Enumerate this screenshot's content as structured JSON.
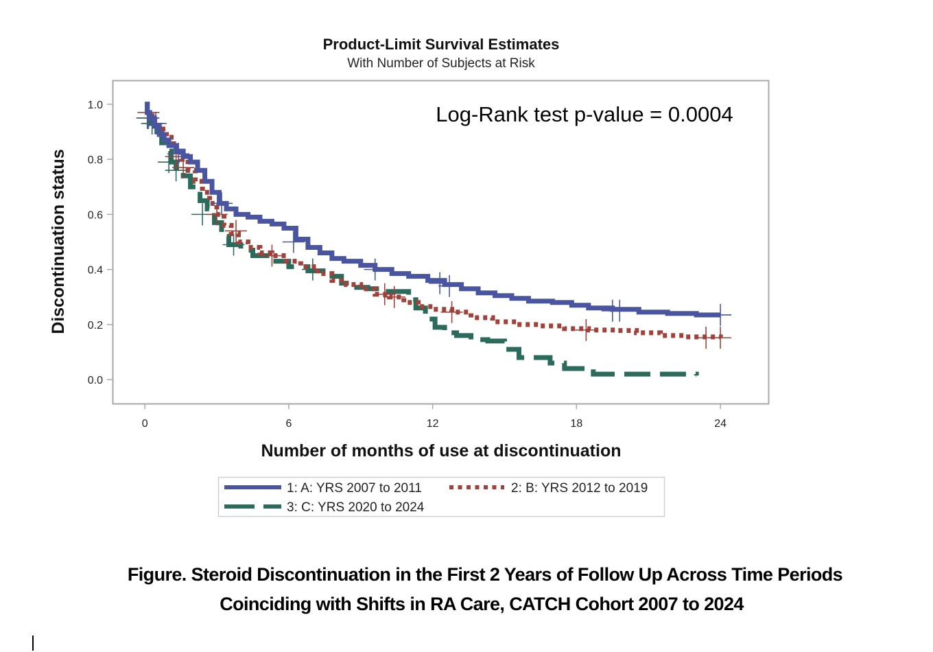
{
  "chart_data": {
    "type": "line",
    "subtype": "kaplan-meier-step",
    "title": "Product-Limit Survival Estimates",
    "subtitle": "With Number of Subjects at Risk",
    "xlabel": "Number of months of use at discontinuation",
    "ylabel": "Discontinuation status",
    "x_ticks": [
      0,
      6,
      12,
      18,
      24
    ],
    "y_ticks": [
      "0.0",
      "0.2",
      "0.4",
      "0.6",
      "0.8",
      "1.0"
    ],
    "xlim": [
      -1.35,
      26
    ],
    "ylim": [
      -0.087,
      1.087
    ],
    "grid": false,
    "legend_position": "bottom",
    "annotation": "Log-Rank test p-value = 0.0004",
    "series": [
      {
        "name": "1: A: YRS 2007 to 2011",
        "color": "#4a55a2",
        "style": "solid",
        "points": [
          [
            0,
            1.0
          ],
          [
            0.1,
            0.97
          ],
          [
            0.2,
            0.95
          ],
          [
            0.4,
            0.92
          ],
          [
            0.6,
            0.89
          ],
          [
            0.8,
            0.87
          ],
          [
            1.0,
            0.85
          ],
          [
            1.3,
            0.83
          ],
          [
            1.6,
            0.81
          ],
          [
            1.9,
            0.79
          ],
          [
            2.2,
            0.76
          ],
          [
            2.5,
            0.72
          ],
          [
            2.8,
            0.68
          ],
          [
            3.1,
            0.64
          ],
          [
            3.4,
            0.62
          ],
          [
            3.8,
            0.6
          ],
          [
            4.3,
            0.59
          ],
          [
            4.8,
            0.575
          ],
          [
            5.3,
            0.565
          ],
          [
            5.8,
            0.55
          ],
          [
            6.3,
            0.51
          ],
          [
            6.8,
            0.48
          ],
          [
            7.3,
            0.46
          ],
          [
            7.8,
            0.44
          ],
          [
            8.3,
            0.43
          ],
          [
            9.0,
            0.415
          ],
          [
            9.6,
            0.4
          ],
          [
            10.3,
            0.385
          ],
          [
            11.0,
            0.375
          ],
          [
            11.8,
            0.36
          ],
          [
            12.5,
            0.345
          ],
          [
            13.2,
            0.33
          ],
          [
            13.9,
            0.315
          ],
          [
            14.6,
            0.305
          ],
          [
            15.3,
            0.295
          ],
          [
            16.0,
            0.285
          ],
          [
            17.0,
            0.28
          ],
          [
            17.8,
            0.27
          ],
          [
            18.5,
            0.26
          ],
          [
            19.5,
            0.255
          ],
          [
            20.6,
            0.245
          ],
          [
            21.8,
            0.24
          ],
          [
            23.0,
            0.235
          ],
          [
            24.0,
            0.235
          ]
        ],
        "censored": [
          [
            0.15,
            0.95
          ],
          [
            0.45,
            0.93
          ],
          [
            1.4,
            0.82
          ],
          [
            3.2,
            0.64
          ],
          [
            6.2,
            0.5
          ],
          [
            9.6,
            0.4
          ],
          [
            12.3,
            0.35
          ],
          [
            12.7,
            0.34
          ],
          [
            19.5,
            0.25
          ],
          [
            19.8,
            0.25
          ],
          [
            24.0,
            0.235
          ]
        ]
      },
      {
        "name": "2: B: YRS 2012 to 2019",
        "color": "#a0413a",
        "style": "dotted",
        "points": [
          [
            0,
            1.0
          ],
          [
            0.1,
            0.97
          ],
          [
            0.3,
            0.94
          ],
          [
            0.6,
            0.91
          ],
          [
            0.9,
            0.88
          ],
          [
            1.2,
            0.84
          ],
          [
            1.5,
            0.8
          ],
          [
            1.8,
            0.76
          ],
          [
            2.1,
            0.72
          ],
          [
            2.4,
            0.68
          ],
          [
            2.7,
            0.64
          ],
          [
            3.0,
            0.6
          ],
          [
            3.3,
            0.56
          ],
          [
            3.6,
            0.53
          ],
          [
            3.9,
            0.5
          ],
          [
            4.3,
            0.48
          ],
          [
            4.8,
            0.46
          ],
          [
            5.3,
            0.45
          ],
          [
            5.9,
            0.43
          ],
          [
            6.5,
            0.41
          ],
          [
            7.2,
            0.385
          ],
          [
            7.8,
            0.36
          ],
          [
            8.4,
            0.345
          ],
          [
            9.0,
            0.33
          ],
          [
            9.6,
            0.31
          ],
          [
            10.2,
            0.3
          ],
          [
            10.8,
            0.28
          ],
          [
            11.4,
            0.265
          ],
          [
            12.0,
            0.255
          ],
          [
            12.8,
            0.245
          ],
          [
            13.6,
            0.225
          ],
          [
            14.5,
            0.21
          ],
          [
            15.5,
            0.2
          ],
          [
            16.5,
            0.195
          ],
          [
            17.5,
            0.185
          ],
          [
            18.5,
            0.18
          ],
          [
            19.6,
            0.178
          ],
          [
            20.5,
            0.17
          ],
          [
            21.5,
            0.16
          ],
          [
            22.5,
            0.155
          ],
          [
            24.0,
            0.152
          ]
        ],
        "censored": [
          [
            0.15,
            0.97
          ],
          [
            1.3,
            0.81
          ],
          [
            1.6,
            0.77
          ],
          [
            3.0,
            0.6
          ],
          [
            3.8,
            0.54
          ],
          [
            5.3,
            0.45
          ],
          [
            10.0,
            0.31
          ],
          [
            10.4,
            0.3
          ],
          [
            12.8,
            0.245
          ],
          [
            18.4,
            0.18
          ],
          [
            23.4,
            0.152
          ],
          [
            24.0,
            0.152
          ]
        ]
      },
      {
        "name": "3: C: YRS 2020 to 2024",
        "color": "#2a6b5c",
        "style": "dashed",
        "points": [
          [
            0,
            1.0
          ],
          [
            0.1,
            0.97
          ],
          [
            0.2,
            0.93
          ],
          [
            0.5,
            0.9
          ],
          [
            0.7,
            0.86
          ],
          [
            0.9,
            0.83
          ],
          [
            1.1,
            0.79
          ],
          [
            1.3,
            0.77
          ],
          [
            1.6,
            0.74
          ],
          [
            1.9,
            0.7
          ],
          [
            2.3,
            0.65
          ],
          [
            2.6,
            0.62
          ],
          [
            2.9,
            0.57
          ],
          [
            3.2,
            0.52
          ],
          [
            3.5,
            0.49
          ],
          [
            4.0,
            0.47
          ],
          [
            4.5,
            0.45
          ],
          [
            5.2,
            0.43
          ],
          [
            6.0,
            0.41
          ],
          [
            6.8,
            0.395
          ],
          [
            7.6,
            0.375
          ],
          [
            8.2,
            0.35
          ],
          [
            8.6,
            0.335
          ],
          [
            9.3,
            0.33
          ],
          [
            10.0,
            0.32
          ],
          [
            10.7,
            0.32
          ],
          [
            11.0,
            0.29
          ],
          [
            11.3,
            0.26
          ],
          [
            11.7,
            0.22
          ],
          [
            12.1,
            0.19
          ],
          [
            12.5,
            0.17
          ],
          [
            13.0,
            0.16
          ],
          [
            13.6,
            0.145
          ],
          [
            14.3,
            0.14
          ],
          [
            15.0,
            0.11
          ],
          [
            15.6,
            0.08
          ],
          [
            16.5,
            0.08
          ],
          [
            16.9,
            0.06
          ],
          [
            17.5,
            0.04
          ],
          [
            18.7,
            0.02
          ],
          [
            22.0,
            0.02
          ],
          [
            23.0,
            0.015
          ]
        ],
        "censored": [
          [
            0.1,
            0.95
          ],
          [
            0.3,
            0.93
          ],
          [
            1.0,
            0.79
          ],
          [
            1.3,
            0.76
          ],
          [
            2.4,
            0.6
          ],
          [
            3.7,
            0.49
          ],
          [
            7.0,
            0.4
          ]
        ]
      }
    ]
  },
  "caption": {
    "line1": "Figure. Steroid Discontinuation in the First 2 Years of Follow Up Across Time Periods",
    "line2": "Coinciding with Shifts in RA Care, CATCH Cohort 2007 to 2024"
  }
}
